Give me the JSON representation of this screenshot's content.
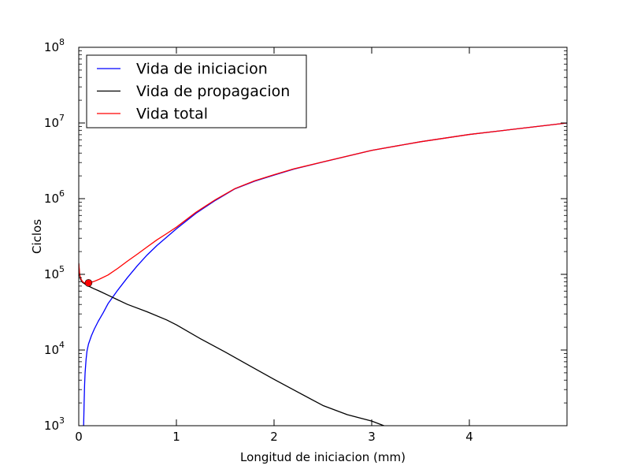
{
  "chart_data": {
    "type": "line",
    "xlabel": "Longitud de iniciacion (mm)",
    "ylabel": "Ciclos",
    "xlim": [
      0,
      5
    ],
    "ylim": [
      1000,
      100000000
    ],
    "yscale": "log",
    "grid": false,
    "legend_position": "top-left",
    "x_ticks": [
      {
        "value": 0,
        "label": "0"
      },
      {
        "value": 1,
        "label": "1"
      },
      {
        "value": 2,
        "label": "2"
      },
      {
        "value": 3,
        "label": "3"
      },
      {
        "value": 4,
        "label": "4"
      }
    ],
    "y_ticks": [
      {
        "value": 1000,
        "base": "10",
        "exp": "3"
      },
      {
        "value": 10000,
        "base": "10",
        "exp": "4"
      },
      {
        "value": 100000,
        "base": "10",
        "exp": "5"
      },
      {
        "value": 1000000,
        "base": "10",
        "exp": "6"
      },
      {
        "value": 10000000,
        "base": "10",
        "exp": "7"
      },
      {
        "value": 100000000,
        "base": "10",
        "exp": "8"
      }
    ],
    "series": [
      {
        "name": "Vida de iniciacion",
        "color": "#0000ff",
        "x": [
          0.05,
          0.055,
          0.06,
          0.065,
          0.075,
          0.085,
          0.1,
          0.13,
          0.16,
          0.2,
          0.25,
          0.3,
          0.4,
          0.5,
          0.6,
          0.7,
          0.8,
          0.9,
          1.0,
          1.2,
          1.4,
          1.6,
          1.8,
          2.0,
          2.2,
          2.5,
          3.0,
          3.5,
          4.0,
          4.5,
          5.0
        ],
        "y": [
          1000,
          2000,
          3500,
          5000,
          7500,
          9800,
          12000,
          15500,
          19000,
          24000,
          31000,
          41000,
          62000,
          91000,
          130000,
          180000,
          240000,
          310000,
          400000,
          640000,
          950000,
          1350000,
          1700000,
          2050000,
          2450000,
          3050000,
          4350000,
          5650000,
          7050000,
          8400000,
          10000000
        ]
      },
      {
        "name": "Vida de propagacion",
        "color": "#000000",
        "x": [
          0.0,
          0.005,
          0.01,
          0.02,
          0.04,
          0.06,
          0.08,
          0.1,
          0.15,
          0.2,
          0.3,
          0.4,
          0.5,
          0.7,
          0.9,
          1.0,
          1.25,
          1.5,
          1.75,
          2.0,
          2.25,
          2.5,
          2.75,
          3.0,
          3.2
        ],
        "y": [
          140000,
          110000,
          95000,
          85000,
          78000,
          75000,
          72000,
          70000,
          65000,
          61000,
          53000,
          46000,
          40000,
          32000,
          25000,
          21500,
          14000,
          9400,
          6200,
          4100,
          2750,
          1850,
          1400,
          1150,
          920
        ]
      },
      {
        "name": "Vida total",
        "color": "#ff0000",
        "x": [
          0.0,
          0.01,
          0.02,
          0.04,
          0.06,
          0.08,
          0.1,
          0.15,
          0.2,
          0.3,
          0.4,
          0.5,
          0.6,
          0.7,
          0.8,
          0.9,
          1.0,
          1.2,
          1.4,
          1.6,
          1.8,
          2.0,
          2.2,
          2.5,
          3.0,
          3.5,
          4.0,
          4.5,
          5.0
        ],
        "y": [
          140000,
          100000,
          88000,
          80000,
          77000,
          76500,
          77000,
          80000,
          85000,
          98000,
          120000,
          150000,
          185000,
          230000,
          285000,
          345000,
          420000,
          660000,
          970000,
          1360000,
          1720000,
          2070000,
          2470000,
          3060000,
          4350000,
          5650000,
          7050000,
          8400000,
          10000000
        ]
      }
    ],
    "markers": [
      {
        "x": 0.1,
        "y": 77000,
        "color": "#ff0000"
      }
    ]
  }
}
